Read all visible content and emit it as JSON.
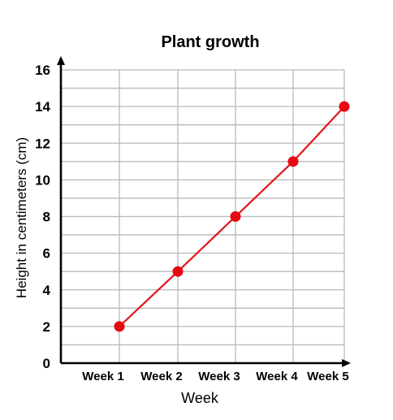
{
  "chart_data": {
    "type": "line",
    "title": "Plant growth",
    "xlabel": "Week",
    "ylabel": "Height in centimeters (cm)",
    "categories": [
      "Week 1",
      "Week 2",
      "Week 3",
      "Week 4",
      "Week 5"
    ],
    "series": [
      {
        "values": [
          2,
          5,
          8,
          11,
          14
        ]
      }
    ],
    "ylim": [
      0,
      16
    ],
    "yticks": [
      0,
      2,
      4,
      6,
      8,
      10,
      12,
      14,
      16
    ],
    "grid": true,
    "colors": {
      "line": "#e0161b",
      "marker": "#e8090f",
      "grid": "#b9b9b9",
      "axis": "#000000"
    }
  }
}
